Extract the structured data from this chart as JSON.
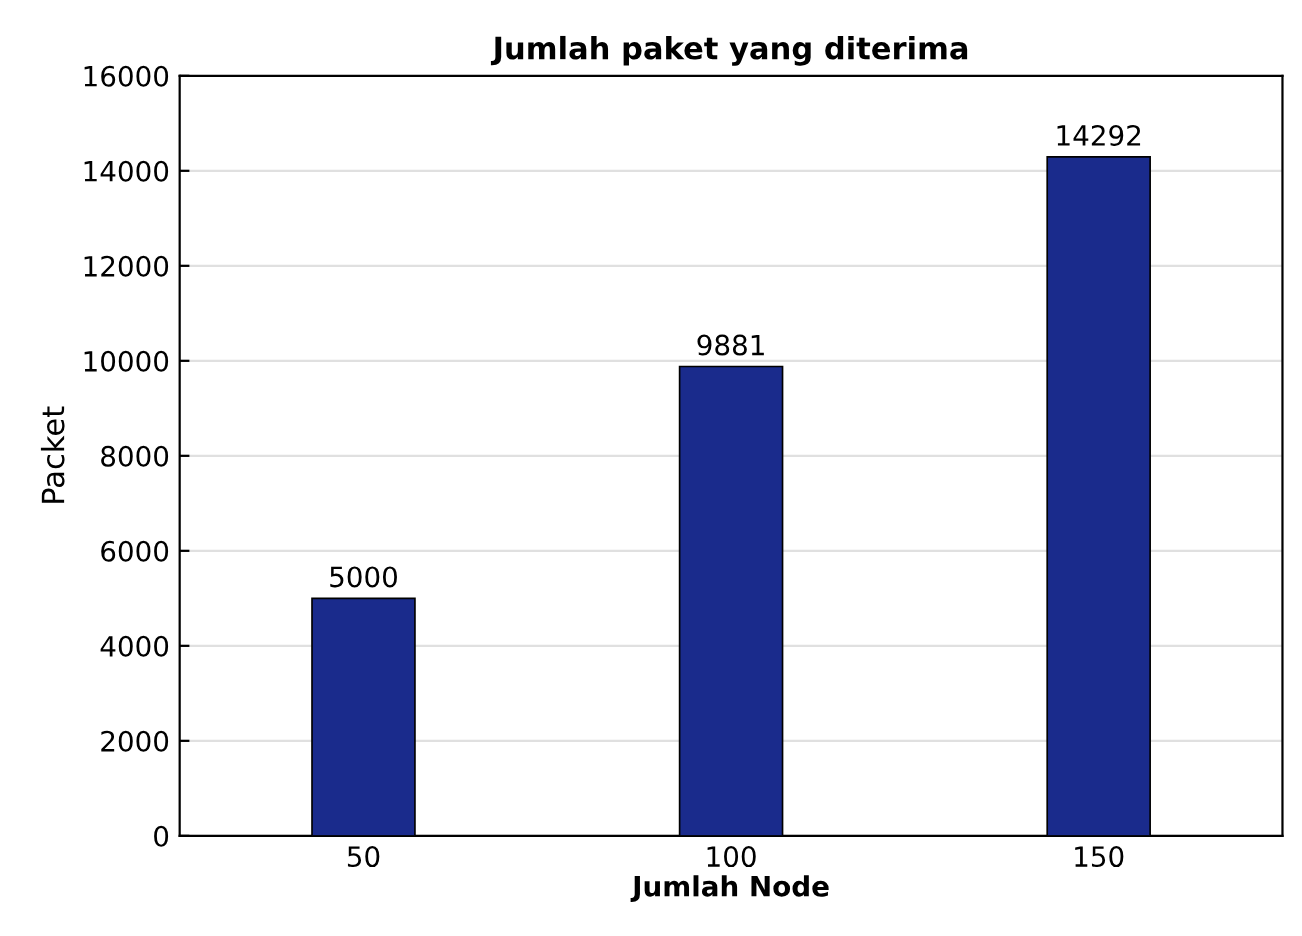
{
  "chart_data": {
    "type": "bar",
    "title": "Jumlah paket yang diterima",
    "xlabel": "Jumlah Node",
    "ylabel": "Packet",
    "categories": [
      "50",
      "100",
      "150"
    ],
    "values": [
      5000,
      9881,
      14292
    ],
    "color": "#1a2b8c",
    "ylim": [
      0,
      16000
    ],
    "yticks": [
      0,
      2000,
      4000,
      6000,
      8000,
      10000,
      12000,
      14000,
      16000
    ],
    "grid": "y",
    "data_labels": true
  }
}
